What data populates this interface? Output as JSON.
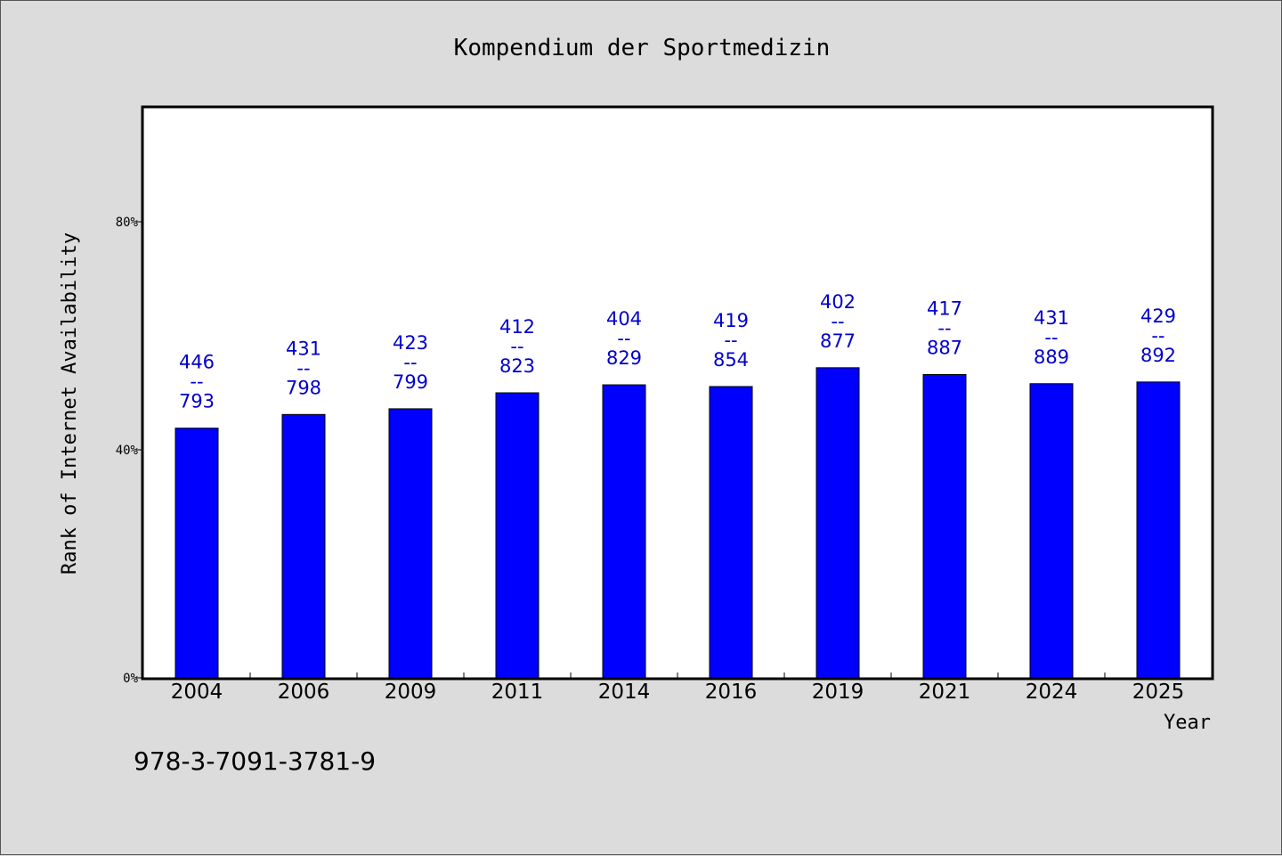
{
  "chart_data": {
    "type": "bar",
    "title": "Kompendium der Sportmedizin",
    "xlabel": "Year",
    "ylabel": "Rank of Internet Availability",
    "categories": [
      "2004",
      "2006",
      "2009",
      "2011",
      "2014",
      "2016",
      "2019",
      "2021",
      "2024",
      "2025"
    ],
    "values": [
      43.8,
      46.2,
      47.2,
      50.0,
      51.4,
      51.1,
      54.4,
      53.2,
      51.6,
      51.9
    ],
    "bar_labels": [
      {
        "top": "446",
        "sep": "--",
        "bottom": "793"
      },
      {
        "top": "431",
        "sep": "--",
        "bottom": "798"
      },
      {
        "top": "423",
        "sep": "--",
        "bottom": "799"
      },
      {
        "top": "412",
        "sep": "--",
        "bottom": "823"
      },
      {
        "top": "404",
        "sep": "--",
        "bottom": "829"
      },
      {
        "top": "419",
        "sep": "--",
        "bottom": "854"
      },
      {
        "top": "402",
        "sep": "--",
        "bottom": "877"
      },
      {
        "top": "417",
        "sep": "--",
        "bottom": "887"
      },
      {
        "top": "431",
        "sep": "--",
        "bottom": "889"
      },
      {
        "top": "429",
        "sep": "--",
        "bottom": "892"
      }
    ],
    "yticks": [
      0,
      40,
      80
    ],
    "ytick_labels": [
      "0%",
      "40%",
      "80%"
    ],
    "ylim": [
      0,
      100
    ],
    "grid": false,
    "legend": "none",
    "bar_color": "#0000ff",
    "label_color": "#0000cc"
  },
  "footer": {
    "isbn": "978-3-7091-3781-9"
  }
}
